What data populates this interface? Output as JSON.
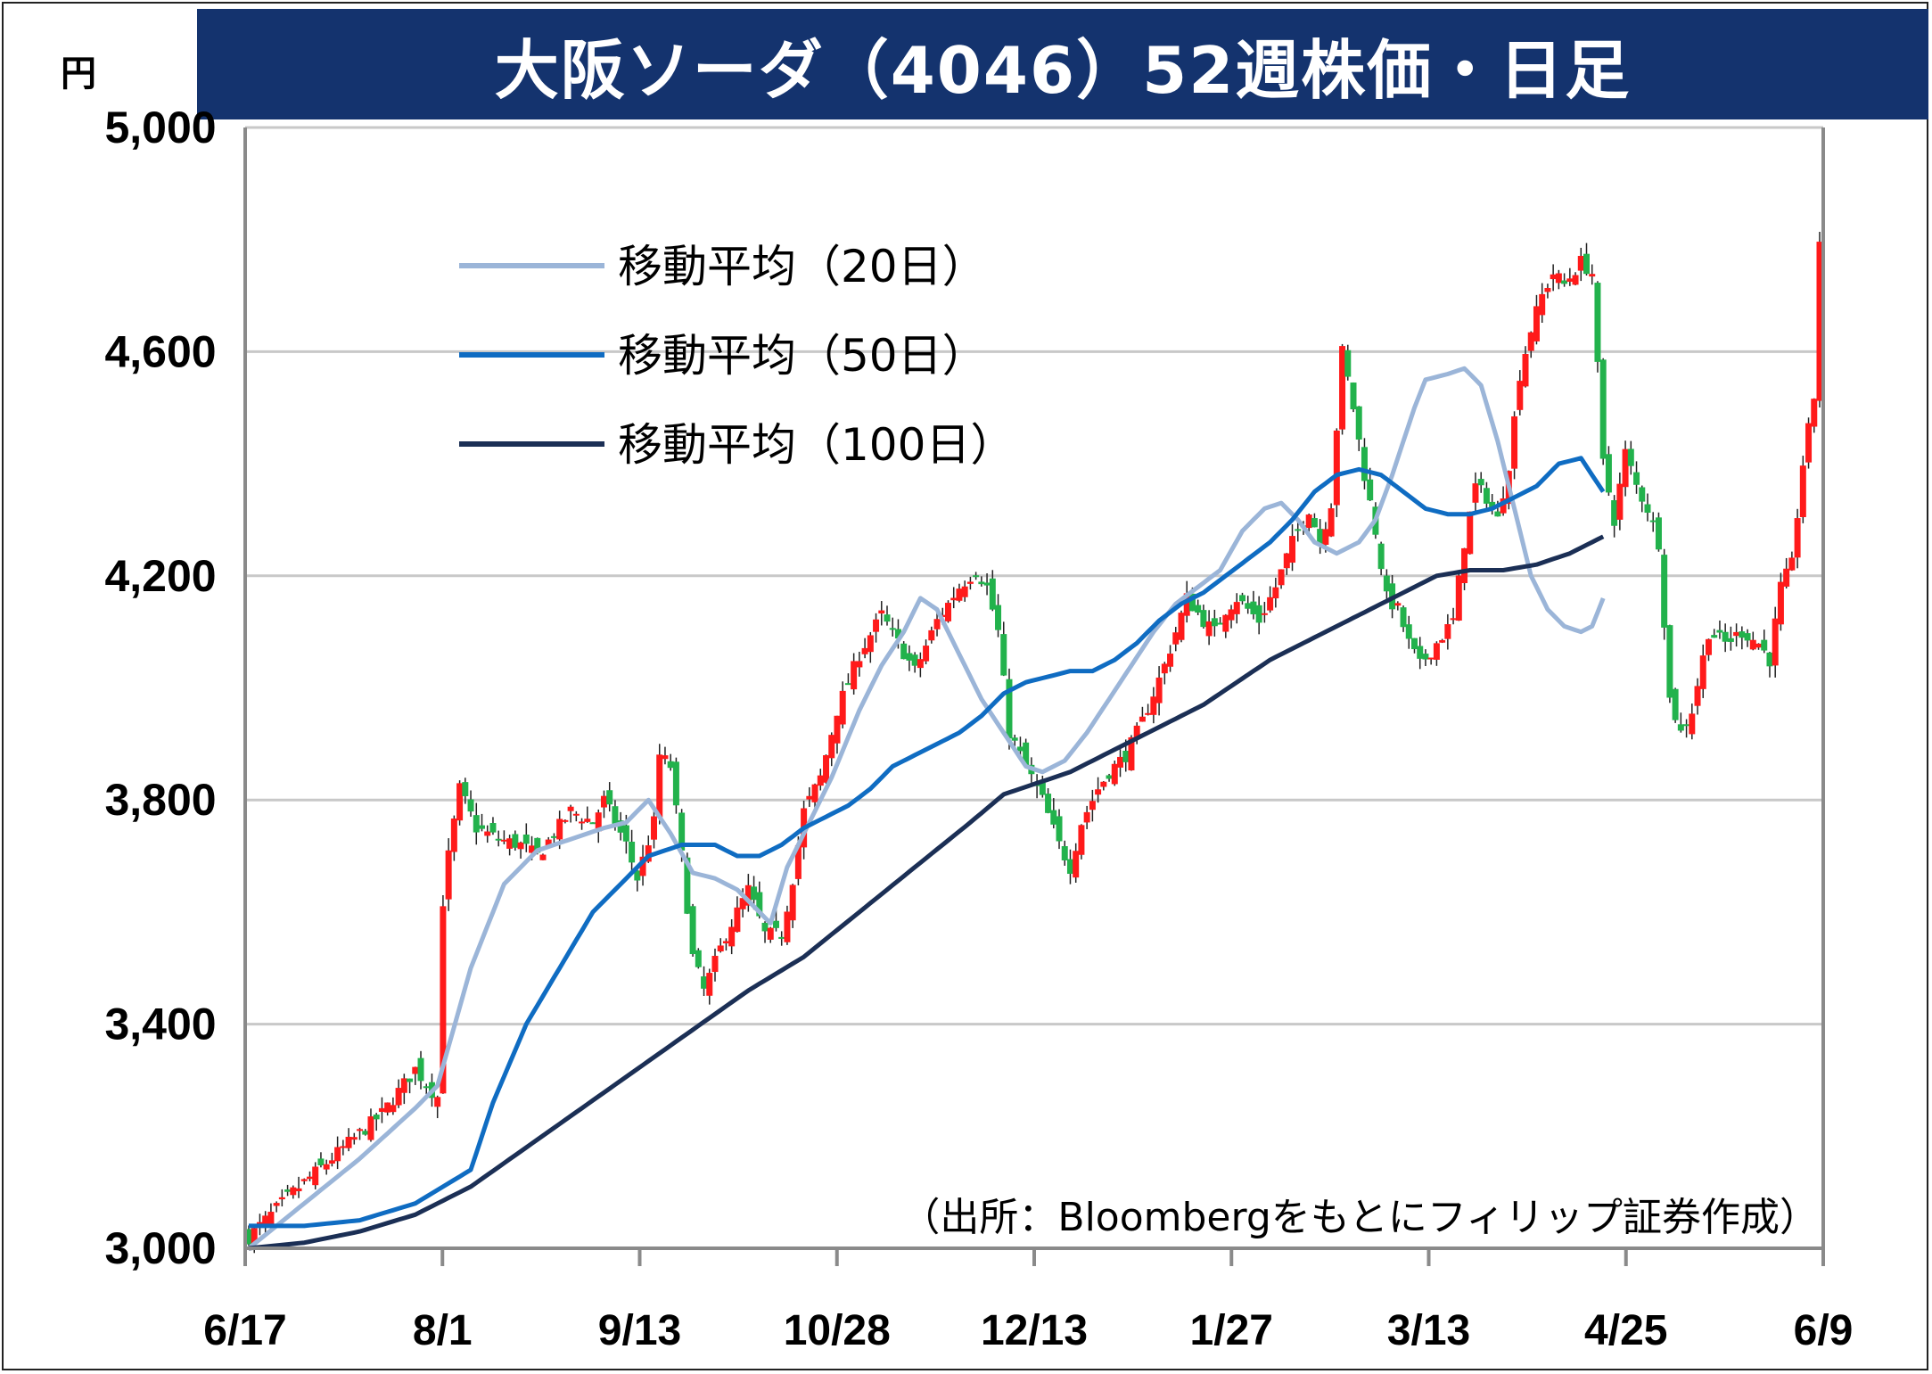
{
  "title": "大阪ソーダ（4046）52週株価・日足",
  "unit_label": "円",
  "source_note": "（出所：Bloombergをもとにフィリップ証券作成）",
  "colors": {
    "title_bg": "#14336e",
    "up": "#ff1a1a",
    "down": "#22b24c",
    "ma20": "#9bb5d8",
    "ma50": "#0f6cc2",
    "ma100": "#1b2f55",
    "grid": "#c8c8c8"
  },
  "chart_data": {
    "type": "candlestick",
    "title": "大阪ソーダ（4046）52週株価・日足",
    "ylabel": "円",
    "ylim": [
      3000,
      5000
    ],
    "yticks": [
      3000,
      3400,
      3800,
      4200,
      4600,
      5000
    ],
    "ytick_labels": [
      "3,000",
      "3,400",
      "3,800",
      "4,200",
      "4,600",
      "5,000"
    ],
    "xtick_labels": [
      "6/17",
      "8/1",
      "9/13",
      "10/28",
      "12/13",
      "1/27",
      "3/13",
      "4/25",
      "6/9"
    ],
    "grid": true,
    "legend_position": "top-left",
    "legend": [
      {
        "key": "ma20",
        "label": "移動平均（20日）"
      },
      {
        "key": "ma50",
        "label": "移動平均（50日）"
      },
      {
        "key": "ma100",
        "label": "移動平均（100日）"
      }
    ],
    "close_anchors": [
      [
        0,
        3020
      ],
      [
        8,
        3100
      ],
      [
        16,
        3170
      ],
      [
        24,
        3240
      ],
      [
        30,
        3320
      ],
      [
        33,
        3280
      ],
      [
        34,
        3270
      ],
      [
        35,
        3620
      ],
      [
        36,
        3700
      ],
      [
        38,
        3820
      ],
      [
        41,
        3750
      ],
      [
        45,
        3730
      ],
      [
        49,
        3720
      ],
      [
        52,
        3700
      ],
      [
        55,
        3740
      ],
      [
        58,
        3780
      ],
      [
        62,
        3760
      ],
      [
        64,
        3800
      ],
      [
        68,
        3720
      ],
      [
        70,
        3660
      ],
      [
        73,
        3760
      ],
      [
        74,
        3880
      ],
      [
        76,
        3860
      ],
      [
        78,
        3700
      ],
      [
        80,
        3520
      ],
      [
        82,
        3460
      ],
      [
        86,
        3560
      ],
      [
        90,
        3640
      ],
      [
        93,
        3560
      ],
      [
        96,
        3560
      ],
      [
        98,
        3660
      ],
      [
        100,
        3780
      ],
      [
        103,
        3840
      ],
      [
        106,
        3960
      ],
      [
        110,
        4060
      ],
      [
        114,
        4130
      ],
      [
        117,
        4080
      ],
      [
        120,
        4030
      ],
      [
        124,
        4120
      ],
      [
        128,
        4180
      ],
      [
        131,
        4210
      ],
      [
        133,
        4180
      ],
      [
        135,
        4100
      ],
      [
        137,
        3920
      ],
      [
        140,
        3860
      ],
      [
        143,
        3800
      ],
      [
        146,
        3720
      ],
      [
        148,
        3680
      ],
      [
        150,
        3760
      ],
      [
        153,
        3820
      ],
      [
        155,
        3850
      ],
      [
        158,
        3880
      ],
      [
        161,
        3940
      ],
      [
        165,
        4040
      ],
      [
        169,
        4160
      ],
      [
        172,
        4120
      ],
      [
        174,
        4100
      ],
      [
        176,
        4140
      ],
      [
        178,
        4160
      ],
      [
        182,
        4120
      ],
      [
        185,
        4180
      ],
      [
        188,
        4260
      ],
      [
        191,
        4320
      ],
      [
        193,
        4260
      ],
      [
        195,
        4330
      ],
      [
        197,
        4600
      ],
      [
        199,
        4500
      ],
      [
        201,
        4380
      ],
      [
        203,
        4280
      ],
      [
        205,
        4160
      ],
      [
        207,
        4140
      ],
      [
        209,
        4080
      ],
      [
        211,
        4040
      ],
      [
        214,
        4080
      ],
      [
        217,
        4120
      ],
      [
        219,
        4260
      ],
      [
        221,
        4360
      ],
      [
        223,
        4340
      ],
      [
        225,
        4300
      ],
      [
        227,
        4400
      ],
      [
        229,
        4560
      ],
      [
        231,
        4640
      ],
      [
        233,
        4700
      ],
      [
        235,
        4740
      ],
      [
        237,
        4720
      ],
      [
        240,
        4760
      ],
      [
        242,
        4740
      ],
      [
        244,
        4400
      ],
      [
        246,
        4300
      ],
      [
        248,
        4420
      ],
      [
        250,
        4360
      ],
      [
        252,
        4320
      ],
      [
        254,
        4260
      ],
      [
        256,
        3980
      ],
      [
        258,
        3920
      ],
      [
        260,
        3960
      ],
      [
        263,
        4100
      ],
      [
        266,
        4080
      ],
      [
        269,
        4100
      ],
      [
        272,
        4080
      ],
      [
        274,
        4050
      ],
      [
        276,
        4180
      ],
      [
        278,
        4220
      ],
      [
        280,
        4400
      ],
      [
        282,
        4520
      ],
      [
        283,
        4800
      ]
    ],
    "ma20_anchors": [
      [
        0,
        3000
      ],
      [
        10,
        3080
      ],
      [
        20,
        3160
      ],
      [
        30,
        3250
      ],
      [
        34,
        3290
      ],
      [
        40,
        3500
      ],
      [
        46,
        3650
      ],
      [
        52,
        3710
      ],
      [
        58,
        3730
      ],
      [
        64,
        3750
      ],
      [
        68,
        3760
      ],
      [
        72,
        3800
      ],
      [
        76,
        3740
      ],
      [
        80,
        3670
      ],
      [
        84,
        3660
      ],
      [
        88,
        3640
      ],
      [
        92,
        3600
      ],
      [
        94,
        3580
      ],
      [
        97,
        3680
      ],
      [
        101,
        3760
      ],
      [
        105,
        3840
      ],
      [
        110,
        3960
      ],
      [
        114,
        4040
      ],
      [
        118,
        4100
      ],
      [
        121,
        4160
      ],
      [
        124,
        4140
      ],
      [
        128,
        4060
      ],
      [
        132,
        3980
      ],
      [
        136,
        3920
      ],
      [
        140,
        3860
      ],
      [
        143,
        3850
      ],
      [
        147,
        3870
      ],
      [
        151,
        3920
      ],
      [
        155,
        3980
      ],
      [
        159,
        4040
      ],
      [
        163,
        4100
      ],
      [
        167,
        4150
      ],
      [
        171,
        4180
      ],
      [
        175,
        4210
      ],
      [
        179,
        4280
      ],
      [
        183,
        4320
      ],
      [
        186,
        4330
      ],
      [
        189,
        4300
      ],
      [
        192,
        4260
      ],
      [
        196,
        4240
      ],
      [
        200,
        4260
      ],
      [
        203,
        4300
      ],
      [
        206,
        4380
      ],
      [
        208,
        4440
      ],
      [
        210,
        4500
      ],
      [
        212,
        4550
      ],
      [
        216,
        4560
      ],
      [
        219,
        4570
      ],
      [
        222,
        4540
      ],
      [
        225,
        4440
      ],
      [
        228,
        4320
      ],
      [
        231,
        4200
      ],
      [
        234,
        4140
      ],
      [
        237,
        4110
      ],
      [
        240,
        4100
      ],
      [
        242,
        4110
      ],
      [
        244,
        4160
      ]
    ],
    "ma50_anchors": [
      [
        0,
        3040
      ],
      [
        10,
        3040
      ],
      [
        20,
        3050
      ],
      [
        30,
        3080
      ],
      [
        40,
        3140
      ],
      [
        44,
        3260
      ],
      [
        50,
        3400
      ],
      [
        56,
        3500
      ],
      [
        62,
        3600
      ],
      [
        68,
        3660
      ],
      [
        72,
        3700
      ],
      [
        78,
        3720
      ],
      [
        84,
        3720
      ],
      [
        88,
        3700
      ],
      [
        92,
        3700
      ],
      [
        96,
        3720
      ],
      [
        100,
        3750
      ],
      [
        104,
        3770
      ],
      [
        108,
        3790
      ],
      [
        112,
        3820
      ],
      [
        116,
        3860
      ],
      [
        120,
        3880
      ],
      [
        124,
        3900
      ],
      [
        128,
        3920
      ],
      [
        132,
        3950
      ],
      [
        136,
        3990
      ],
      [
        140,
        4010
      ],
      [
        144,
        4020
      ],
      [
        148,
        4030
      ],
      [
        152,
        4030
      ],
      [
        156,
        4050
      ],
      [
        160,
        4080
      ],
      [
        164,
        4120
      ],
      [
        168,
        4150
      ],
      [
        172,
        4170
      ],
      [
        176,
        4200
      ],
      [
        180,
        4230
      ],
      [
        184,
        4260
      ],
      [
        188,
        4300
      ],
      [
        192,
        4350
      ],
      [
        196,
        4380
      ],
      [
        200,
        4390
      ],
      [
        204,
        4380
      ],
      [
        208,
        4350
      ],
      [
        212,
        4320
      ],
      [
        216,
        4310
      ],
      [
        220,
        4310
      ],
      [
        224,
        4320
      ],
      [
        228,
        4340
      ],
      [
        232,
        4360
      ],
      [
        236,
        4400
      ],
      [
        240,
        4410
      ],
      [
        244,
        4350
      ]
    ],
    "ma100_anchors": [
      [
        0,
        3000
      ],
      [
        10,
        3010
      ],
      [
        20,
        3030
      ],
      [
        30,
        3060
      ],
      [
        40,
        3110
      ],
      [
        50,
        3180
      ],
      [
        60,
        3250
      ],
      [
        70,
        3320
      ],
      [
        80,
        3390
      ],
      [
        90,
        3460
      ],
      [
        100,
        3520
      ],
      [
        110,
        3600
      ],
      [
        120,
        3680
      ],
      [
        130,
        3760
      ],
      [
        136,
        3810
      ],
      [
        142,
        3830
      ],
      [
        148,
        3850
      ],
      [
        154,
        3880
      ],
      [
        160,
        3910
      ],
      [
        166,
        3940
      ],
      [
        172,
        3970
      ],
      [
        178,
        4010
      ],
      [
        184,
        4050
      ],
      [
        190,
        4080
      ],
      [
        196,
        4110
      ],
      [
        202,
        4140
      ],
      [
        208,
        4170
      ],
      [
        214,
        4200
      ],
      [
        220,
        4210
      ],
      [
        226,
        4210
      ],
      [
        232,
        4220
      ],
      [
        238,
        4240
      ],
      [
        244,
        4270
      ]
    ]
  }
}
